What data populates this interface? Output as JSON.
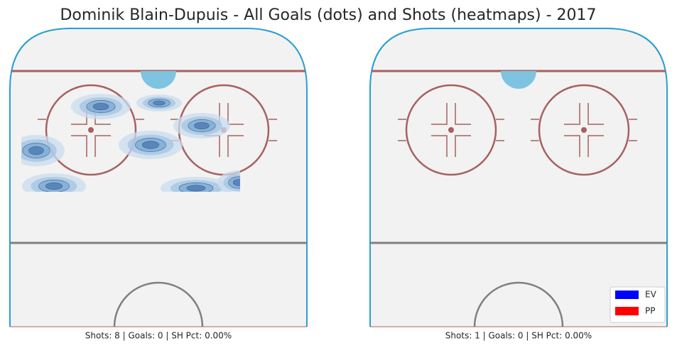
{
  "chart_data": {
    "type": "rink-heatmap",
    "title": "Dominik Blain-Dupuis - All Goals (dots) and Shots (heatmaps) - 2017",
    "panels": [
      {
        "caption": "Shots: 8 | Goals: 0 | SH Pct: 0.00%",
        "heatmap": true
      },
      {
        "caption": "Shots: 1 | Goals: 0 | SH Pct: 0.00%",
        "heatmap": false
      }
    ],
    "legend": [
      {
        "name": "EV",
        "color": "#0000ff"
      },
      {
        "name": "PP",
        "color": "#ff0000"
      }
    ]
  }
}
